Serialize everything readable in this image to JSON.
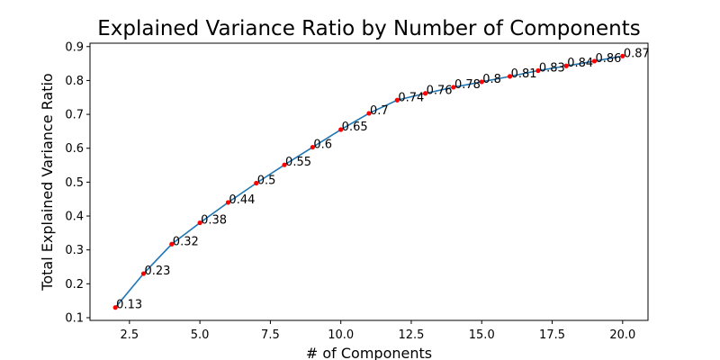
{
  "chart_data": {
    "type": "line",
    "title": "Explained Variance Ratio by Number of Components",
    "xlabel": "# of Components",
    "ylabel": "Total Explained Variance Ratio",
    "xlim": [
      1.1,
      20.9
    ],
    "ylim": [
      0.092,
      0.91
    ],
    "x_ticks": [
      2.5,
      5.0,
      7.5,
      10.0,
      12.5,
      15.0,
      17.5,
      20.0
    ],
    "x_tick_labels": [
      "2.5",
      "5.0",
      "7.5",
      "10.0",
      "12.5",
      "15.0",
      "17.5",
      "20.0"
    ],
    "y_ticks": [
      0.1,
      0.2,
      0.3,
      0.4,
      0.5,
      0.6,
      0.7,
      0.8,
      0.9
    ],
    "y_tick_labels": [
      "0.1",
      "0.2",
      "0.3",
      "0.4",
      "0.5",
      "0.6",
      "0.7",
      "0.8",
      "0.9"
    ],
    "grid": false,
    "line_color": "#1f77b4",
    "marker_color": "#ff0000",
    "series": [
      {
        "x": [
          2,
          3,
          4,
          5,
          6,
          7,
          8,
          9,
          10,
          11,
          12,
          13,
          14,
          15,
          16,
          17,
          18,
          19,
          20
        ],
        "values": [
          0.13,
          0.23,
          0.317,
          0.38,
          0.44,
          0.497,
          0.551,
          0.603,
          0.655,
          0.703,
          0.742,
          0.762,
          0.78,
          0.796,
          0.812,
          0.829,
          0.843,
          0.857,
          0.872
        ],
        "data_labels": [
          "0.13",
          "0.23",
          "0.32",
          "0.38",
          "0.44",
          "0.5",
          "0.55",
          "0.6",
          "0.65",
          "0.7",
          "0.74",
          "0.76",
          "0.78",
          "0.8",
          "0.81",
          "0.83",
          "0.84",
          "0.86",
          "0.87"
        ]
      }
    ]
  }
}
